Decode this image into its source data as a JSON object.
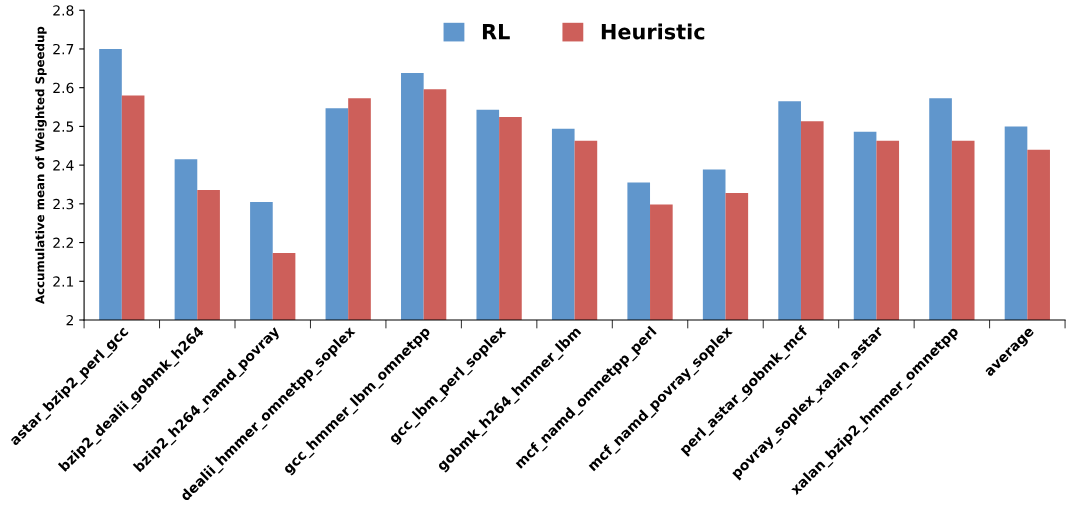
{
  "chart_data": {
    "type": "bar",
    "ylabel": "Accumulative mean of Weighted Speedup",
    "categories": [
      "astar_bzip2_perl_gcc",
      "bzip2_dealii_gobmk_h264",
      "bzip2_h264_namd_povray",
      "dealii_hmmer_omnetpp_soplex",
      "gcc_hmmer_lbm_omnetpp",
      "gcc_lbm_perl_soplex",
      "gobmk_h264_hmmer_lbm",
      "mcf_namd_omnetpp_perl",
      "mcf_namd_povray_soplex",
      "perl_astar_gobmk_mcf",
      "povray_soplex_xalan_astar",
      "xalan_bzip2_hmmer_omnetpp",
      "average"
    ],
    "series": [
      {
        "name": "RL",
        "color": "#6096cc",
        "values": [
          2.7,
          2.415,
          2.305,
          2.547,
          2.638,
          2.543,
          2.494,
          2.355,
          2.389,
          2.565,
          2.486,
          2.573,
          2.5
        ]
      },
      {
        "name": "Heuristic",
        "color": "#cd5f5a",
        "values": [
          2.58,
          2.336,
          2.173,
          2.573,
          2.596,
          2.524,
          2.463,
          2.298,
          2.328,
          2.513,
          2.463,
          2.463,
          2.44
        ]
      }
    ],
    "ylim": [
      2,
      2.8
    ],
    "yticks": [
      2,
      2.1,
      2.2,
      2.3,
      2.4,
      2.5,
      2.6,
      2.7,
      2.8
    ],
    "grid": false,
    "legend": "top"
  }
}
